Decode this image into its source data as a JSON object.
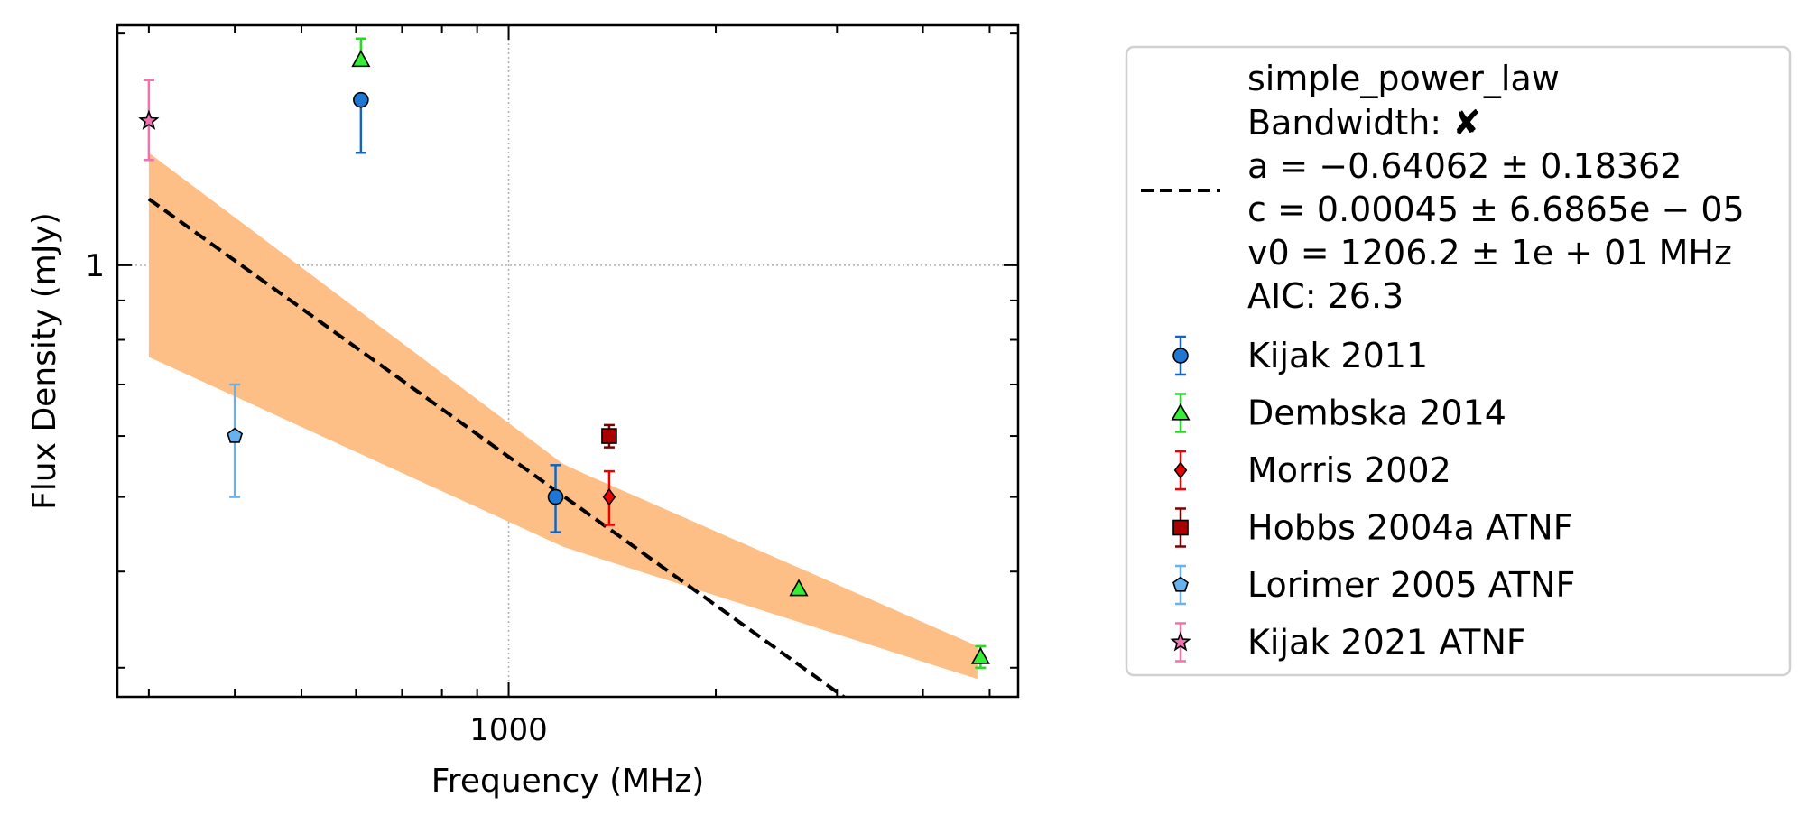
{
  "chart_data": {
    "type": "scatter",
    "xlabel": "Frequency (MHz)",
    "ylabel": "Flux Density (mJy)",
    "x_scale": "log",
    "y_scale": "log",
    "xlim": [
      270,
      5500
    ],
    "ylim": [
      0.275,
      2.05
    ],
    "x_tick_labels": [
      {
        "value": 1000,
        "label": "1000"
      }
    ],
    "y_tick_labels": [
      {
        "value": 1,
        "label": "1"
      }
    ],
    "grid": true,
    "legend_position": "right",
    "fit": {
      "name": "simple_power_law",
      "bandwidth_label": "Bandwidth: ",
      "bandwidth_mark": "✘",
      "a_text": "a = −0.64062 ± 0.18362",
      "c_text": "c = 0.00045 ± 6.6865e − 05",
      "v0_text": "v0 = 1206.2 ± 1e + 01 MHz",
      "aic_text": "AIC: 26.3",
      "a": -0.64062,
      "v0": 1206.2,
      "amplitude_at_v0": 0.5,
      "x_range": [
        300,
        4800
      ],
      "color": "#000000",
      "band_color": "#fdbf86",
      "band": [
        {
          "x": 300,
          "lower": 0.76,
          "upper": 1.4
        },
        {
          "x": 1206.2,
          "lower": 0.43,
          "upper": 0.55
        },
        {
          "x": 4800,
          "lower": 0.29,
          "upper": 0.32
        }
      ]
    },
    "series": [
      {
        "name": "Kijak 2011",
        "marker": "circle",
        "color": "#1f77d4",
        "errcolor": "#1565c0",
        "points": [
          {
            "x": 610,
            "y": 1.64,
            "err_low": 0.24,
            "err_high": 0.0
          },
          {
            "x": 1170,
            "y": 0.5,
            "err_low": 0.05,
            "err_high": 0.05
          }
        ]
      },
      {
        "name": "Dembska 2014",
        "marker": "triangle",
        "color": "#33ee33",
        "errcolor": "#22dd22",
        "points": [
          {
            "x": 610,
            "y": 1.85,
            "err_low": 0.0,
            "err_high": 0.12
          },
          {
            "x": 2640,
            "y": 0.38,
            "err_low": 0.0,
            "err_high": 0.0
          },
          {
            "x": 4850,
            "y": 0.31,
            "err_low": 0.01,
            "err_high": 0.01
          }
        ]
      },
      {
        "name": "Morris 2002",
        "marker": "diamond",
        "color": "#ee0000",
        "errcolor": "#ee0000",
        "points": [
          {
            "x": 1400,
            "y": 0.5,
            "err_low": 0.04,
            "err_high": 0.04
          }
        ]
      },
      {
        "name": "Hobbs 2004a ATNF",
        "marker": "square",
        "color": "#aa0000",
        "errcolor": "#7a0000",
        "points": [
          {
            "x": 1400,
            "y": 0.6,
            "err_low": 0.02,
            "err_high": 0.02
          }
        ]
      },
      {
        "name": "Lorimer 2005 ATNF",
        "marker": "pentagon",
        "color": "#66b2ee",
        "errcolor": "#66b2ee",
        "points": [
          {
            "x": 400,
            "y": 0.6,
            "err_low": 0.1,
            "err_high": 0.1
          }
        ]
      },
      {
        "name": "Kijak 2021 ATNF",
        "marker": "star",
        "color": "#f070b0",
        "errcolor": "#f070b0",
        "points": [
          {
            "x": 300,
            "y": 1.54,
            "err_low": 0.17,
            "err_high": 0.2
          }
        ]
      }
    ]
  }
}
